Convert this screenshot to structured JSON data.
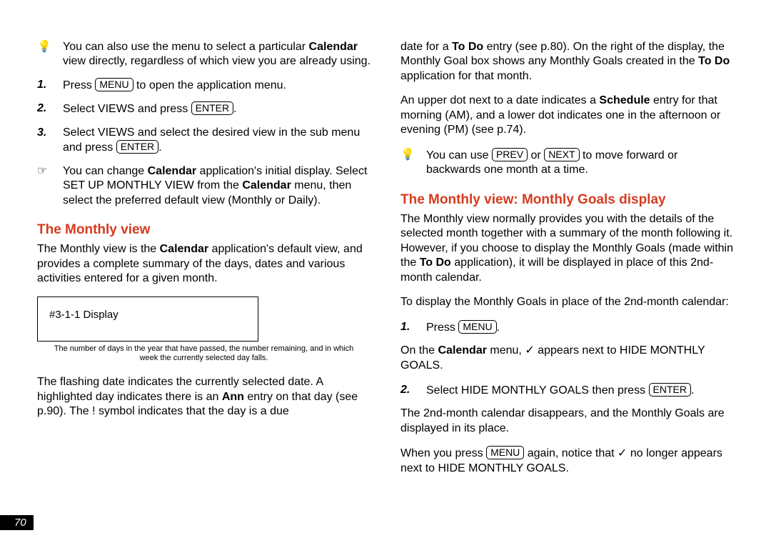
{
  "left": {
    "tip1_a": "You can also use the menu to select a particular ",
    "tip1_b": "Calendar",
    "tip1_c": " view directly, regardless of which view you are already using.",
    "step1_a": "Press ",
    "step1_b": " to open the application menu.",
    "key_menu": "MENU",
    "step2_a": "Select VIEWS and press ",
    "key_enter": "ENTER",
    "step2_b": ".",
    "step3_a": "Select VIEWS and select the desired view in the sub menu and press ",
    "step3_b": ".",
    "hand_a": "You can change ",
    "hand_b": "Calendar",
    "hand_c": " application's initial display. Select SET UP MONTHLY VIEW from the ",
    "hand_d": "Calendar",
    "hand_e": " menu, then select the preferred default view (Monthly or Daily).",
    "h1": "The Monthly view",
    "p1_a": "The Monthly view is the ",
    "p1_b": "Calendar",
    "p1_c": " application's default view, and provides a complete summary of the days, dates and various activities entered for a given month.",
    "box": "#3-1-1 Display",
    "caption": "The number of days in the year that have passed, the number remaining, and in which week the currently selected day falls.",
    "p2_a": "The flashing date indicates the currently selected date. A highlighted day indicates there is an ",
    "p2_b": "Ann",
    "p2_c": " entry on that day (see p.90). The ! symbol indicates that the day is a due"
  },
  "right": {
    "p1_a": "date for a ",
    "p1_b": "To Do",
    "p1_c": " entry (see p.80). On the right of the display, the Monthly Goal box shows any Monthly Goals created in the ",
    "p1_d": "To Do",
    "p1_e": " application for that month.",
    "p2_a": "An upper dot next to a date indicates a ",
    "p2_b": "Schedule",
    "p2_c": " entry for that morning (AM), and a lower dot indicates one in the afternoon or evening (PM) (see p.74).",
    "tip_a": "You can use ",
    "tip_b": " or ",
    "tip_c": " to move forward or backwards one month at a time.",
    "key_prev": "PREV",
    "key_next": "NEXT",
    "h2": "The Monthly view: Monthly Goals display",
    "p3_a": "The Monthly view normally provides you with the details of the selected month together with a summary of the month following it. However, if you choose to display the Monthly Goals (made within the ",
    "p3_b": "To Do",
    "p3_c": " application), it will be displayed in place of this 2nd-month calendar.",
    "p4": "To display the Monthly Goals in place of the 2nd-month calendar:",
    "step1_a": "Press ",
    "step1_b": ".",
    "key_menu": "MENU",
    "p5_a": "On the ",
    "p5_b": "Calendar",
    "p5_c": " menu, ✓ appears next to HIDE MONTHLY GOALS.",
    "step2_a": "Select HIDE MONTHLY GOALS then press ",
    "step2_b": ".",
    "key_enter": "ENTER",
    "p6": "The 2nd-month calendar disappears, and the Monthly Goals are displayed in its place.",
    "p7_a": "When you press ",
    "p7_b": " again, notice that ✓ no longer appears next to HIDE MONTHLY GOALS."
  },
  "pagenum": "70",
  "numbers": {
    "n1": "1.",
    "n2": "2.",
    "n3": "3."
  },
  "icons": {
    "bulb": "💡",
    "hand": "☞"
  }
}
